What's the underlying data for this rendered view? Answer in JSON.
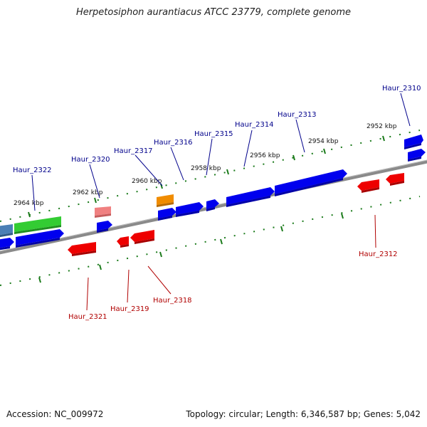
{
  "title": "Herpetosiphon aurantiacus ATCC 23779, complete genome",
  "footer": {
    "accession": "Accession: NC_009972",
    "summary": "Topology: circular; Length: 6,346,587 bp; Genes: 5,042"
  },
  "colors": {
    "backbone": "#808080",
    "tick": "#1a7a1a",
    "forward_gene": "#0000ee",
    "reverse_gene": "#ee0000",
    "forward_label": "#00008b",
    "reverse_label": "#b00000",
    "green_gene": "#33cc33",
    "steelblue_gene": "#4a7fb5",
    "orange_gene": "#f08c00",
    "pink_gene": "#f08080"
  },
  "scale_labels": [
    "2964 kbp",
    "2962 kbp",
    "2960 kbp",
    "2958 kbp",
    "2956 kbp",
    "2954 kbp",
    "2952 kbp"
  ],
  "forward_labels": [
    "Haur_2322",
    "Haur_2320",
    "Haur_2317",
    "Haur_2316",
    "Haur_2315",
    "Haur_2314",
    "Haur_2313",
    "Haur_2310"
  ],
  "reverse_labels": [
    "Haur_2321",
    "Haur_2319",
    "Haur_2318",
    "Haur_2312"
  ]
}
